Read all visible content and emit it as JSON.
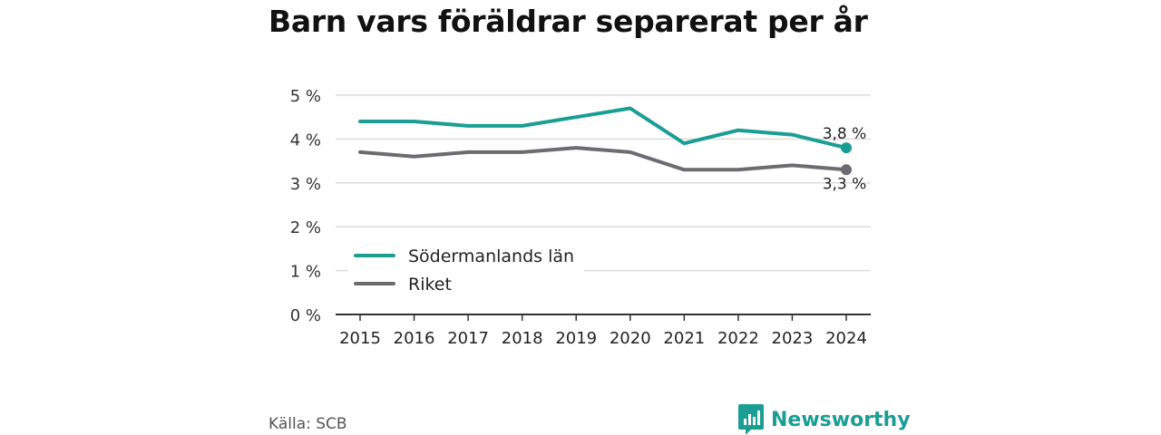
{
  "title": "Barn vars föräldrar separerat per år",
  "source": "Källa: SCB",
  "brand": {
    "name": "Newsworthy",
    "logo_icon": "bar-chart-speech-bubble-icon",
    "color": "#1a9e94"
  },
  "chart_data": {
    "type": "line",
    "x": [
      2015,
      2016,
      2017,
      2018,
      2019,
      2020,
      2021,
      2022,
      2023,
      2024
    ],
    "x_labels": [
      "2015",
      "2016",
      "2017",
      "2018",
      "2019",
      "2020",
      "2021",
      "2022",
      "2023",
      "2024"
    ],
    "ylim": [
      0,
      5
    ],
    "y_ticks": [
      0,
      1,
      2,
      3,
      4,
      5
    ],
    "y_tick_labels": [
      "0 %",
      "1 %",
      "2 %",
      "3 %",
      "4 %",
      "5 %"
    ],
    "grid": true,
    "legend": {
      "placement": "bottom-left"
    },
    "series": [
      {
        "name": "Södermanlands län",
        "color": "#1a9e94",
        "values": [
          4.4,
          4.4,
          4.3,
          4.3,
          4.5,
          4.7,
          3.9,
          4.2,
          4.1,
          3.8
        ],
        "end_label": "3,8 %",
        "end_label_side": "above"
      },
      {
        "name": "Riket",
        "color": "#6d6b72",
        "values": [
          3.7,
          3.6,
          3.7,
          3.7,
          3.8,
          3.7,
          3.3,
          3.3,
          3.4,
          3.3
        ],
        "end_label": "3,3 %",
        "end_label_side": "below"
      }
    ]
  }
}
